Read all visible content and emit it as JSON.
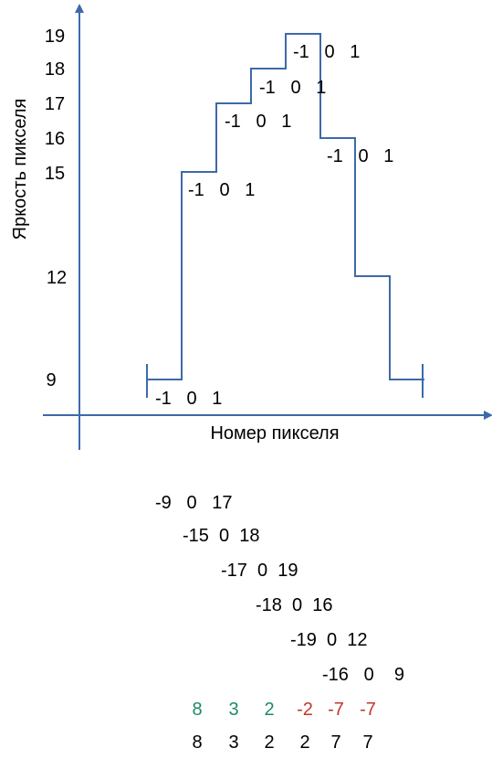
{
  "colors": {
    "axis": "#3d6aa8",
    "curve": "#3d6aa8",
    "positive": "#1f8a66",
    "negative": "#c0392b"
  },
  "axes": {
    "y_label": "Яркость пикселя",
    "x_label": "Номер пикселя"
  },
  "y_ticks": [
    "19",
    "18",
    "17",
    "16",
    "15",
    "12",
    "9"
  ],
  "profile": {
    "levels": [
      9,
      15,
      17,
      18,
      19,
      16,
      12,
      9
    ],
    "kernel_labels": [
      "-1   0   1",
      "-1   0   1",
      "-1   0   1",
      "-1   0   1",
      "-1   0   1",
      "-1   0   1"
    ]
  },
  "convolution_rows": [
    "-9   0   17",
    "-15  0  18",
    "-17  0  19",
    "-18  0  16",
    "-19  0  12",
    "-16   0    9"
  ],
  "signed_results": [
    {
      "text": "8",
      "sign": "positive"
    },
    {
      "text": "3",
      "sign": "positive"
    },
    {
      "text": "2",
      "sign": "positive"
    },
    {
      "text": "-2",
      "sign": "negative"
    },
    {
      "text": "-7",
      "sign": "negative"
    },
    {
      "text": "-7",
      "sign": "negative"
    }
  ],
  "abs_results": [
    "8",
    "3",
    "2",
    "2",
    "7",
    "7"
  ]
}
